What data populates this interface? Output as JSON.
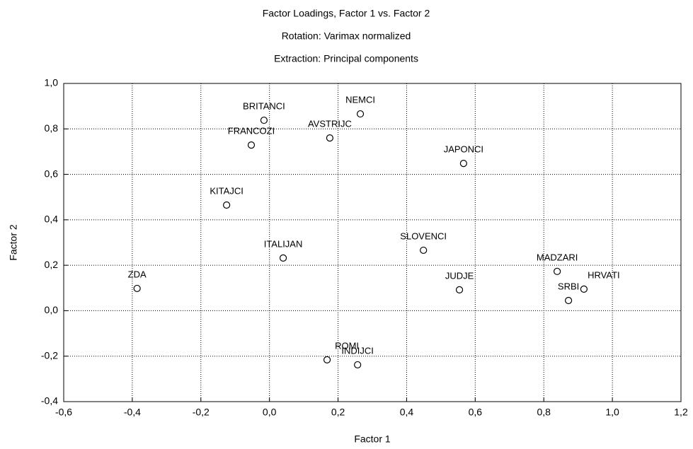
{
  "chart_data": {
    "type": "scatter",
    "title": "Factor Loadings, Factor 1 vs. Factor 2",
    "subtitle": [
      "Rotation: Varimax normalized",
      "Extraction: Principal components"
    ],
    "x_label": "Factor 1",
    "y_label": "Factor 2",
    "labels": [
      "BRITANCI",
      "NEMCI",
      "AVSTRIJC",
      "FRANCOZI",
      "JAPONCI",
      "KITAJCI",
      "SLOVENCI",
      "ITALIJAN",
      "MADZARI",
      "ZDA",
      "JUDJE",
      "HRVATI",
      "SRBI",
      "ROMI",
      "INDIJCI"
    ],
    "x": [
      -0.016,
      0.265,
      0.176,
      -0.053,
      0.566,
      -0.125,
      0.449,
      0.04,
      0.839,
      -0.386,
      0.554,
      0.917,
      0.872,
      0.168,
      0.257
    ],
    "y": [
      0.838,
      0.866,
      0.76,
      0.729,
      0.648,
      0.465,
      0.266,
      0.232,
      0.173,
      0.098,
      0.092,
      0.095,
      0.045,
      -0.216,
      -0.238
    ],
    "xlim": [
      -0.6,
      1.2
    ],
    "xticks": [
      {
        "value": -0.6,
        "label": "-0,6"
      },
      {
        "value": -0.4,
        "label": "-0,4"
      },
      {
        "value": -0.2,
        "label": "-0,2"
      },
      {
        "value": 0,
        "label": "0,0"
      },
      {
        "value": 0.2,
        "label": "0,2"
      },
      {
        "value": 0.4,
        "label": "0,4"
      },
      {
        "value": 0.6,
        "label": "0,6"
      },
      {
        "value": 0.8,
        "label": "0,8"
      },
      {
        "value": 1.0,
        "label": "1,0"
      },
      {
        "value": 1.2,
        "label": "1,2"
      }
    ],
    "ylim": [
      -0.4,
      1.0
    ],
    "yticks": [
      {
        "value": -0.4,
        "label": "-0,4"
      },
      {
        "value": -0.2,
        "label": "-0,2"
      },
      {
        "value": 0,
        "label": "0,0"
      },
      {
        "value": 0.2,
        "label": "0,2"
      },
      {
        "value": 0.4,
        "label": "0,4"
      },
      {
        "value": 0.6,
        "label": "0,6"
      },
      {
        "value": 0.8,
        "label": "0,8"
      },
      {
        "value": 1.0,
        "label": "1,0"
      }
    ],
    "grid": true,
    "color": "#000000"
  }
}
